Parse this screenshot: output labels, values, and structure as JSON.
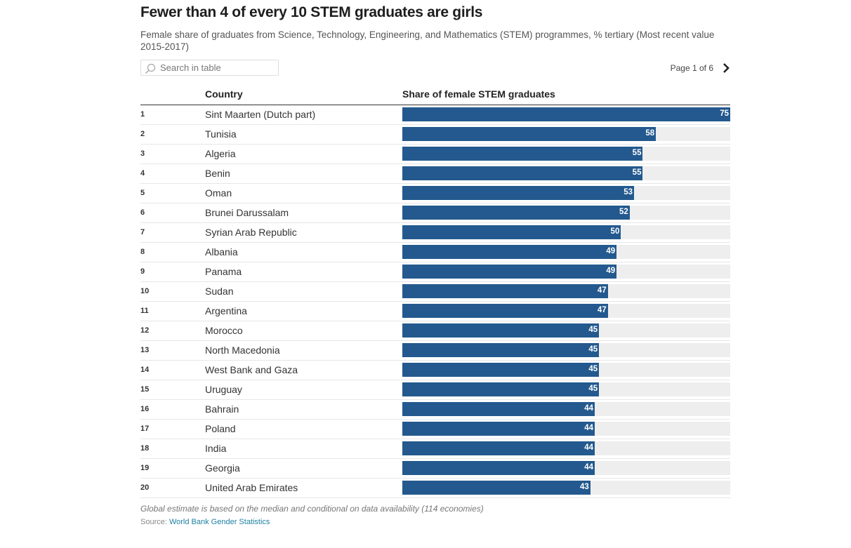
{
  "title": "Fewer than 4 of every 10 STEM graduates are girls",
  "subtitle": "Female share of graduates from Science, Technology, Engineering, and Mathematics (STEM) programmes, % tertiary (Most recent value 2015-2017)",
  "search": {
    "placeholder": "Search in table",
    "icon": "search-icon"
  },
  "pager": {
    "label": "Page 1 of 6",
    "icon": "chevron-right-icon"
  },
  "colors": {
    "bar": "#23598e",
    "track": "#eeeeee",
    "link": "#1d81a2"
  },
  "chart_data": {
    "type": "table",
    "columns": [
      "",
      "Country",
      "Share of female STEM graduates"
    ],
    "xlim": [
      0,
      75
    ],
    "rows": [
      {
        "rank": "1",
        "country": "Sint Maarten (Dutch part)",
        "value": 75
      },
      {
        "rank": "2",
        "country": "Tunisia",
        "value": 58
      },
      {
        "rank": "3",
        "country": "Algeria",
        "value": 55
      },
      {
        "rank": "4",
        "country": "Benin",
        "value": 55
      },
      {
        "rank": "5",
        "country": "Oman",
        "value": 53
      },
      {
        "rank": "6",
        "country": "Brunei Darussalam",
        "value": 52
      },
      {
        "rank": "7",
        "country": "Syrian Arab Republic",
        "value": 50
      },
      {
        "rank": "8",
        "country": "Albania",
        "value": 49
      },
      {
        "rank": "9",
        "country": "Panama",
        "value": 49
      },
      {
        "rank": "10",
        "country": "Sudan",
        "value": 47
      },
      {
        "rank": "11",
        "country": "Argentina",
        "value": 47
      },
      {
        "rank": "12",
        "country": "Morocco",
        "value": 45
      },
      {
        "rank": "13",
        "country": "North Macedonia",
        "value": 45
      },
      {
        "rank": "14",
        "country": "West Bank and Gaza",
        "value": 45
      },
      {
        "rank": "15",
        "country": "Uruguay",
        "value": 45
      },
      {
        "rank": "16",
        "country": "Bahrain",
        "value": 44
      },
      {
        "rank": "17",
        "country": "Poland",
        "value": 44
      },
      {
        "rank": "18",
        "country": "India",
        "value": 44
      },
      {
        "rank": "19",
        "country": "Georgia",
        "value": 44
      },
      {
        "rank": "20",
        "country": "United Arab Emirates",
        "value": 43
      }
    ]
  },
  "footer": {
    "note": "Global estimate is based on the median and conditional on data availability (114 economies)",
    "source_label": "Source: ",
    "source_link": "World Bank Gender Statistics"
  }
}
